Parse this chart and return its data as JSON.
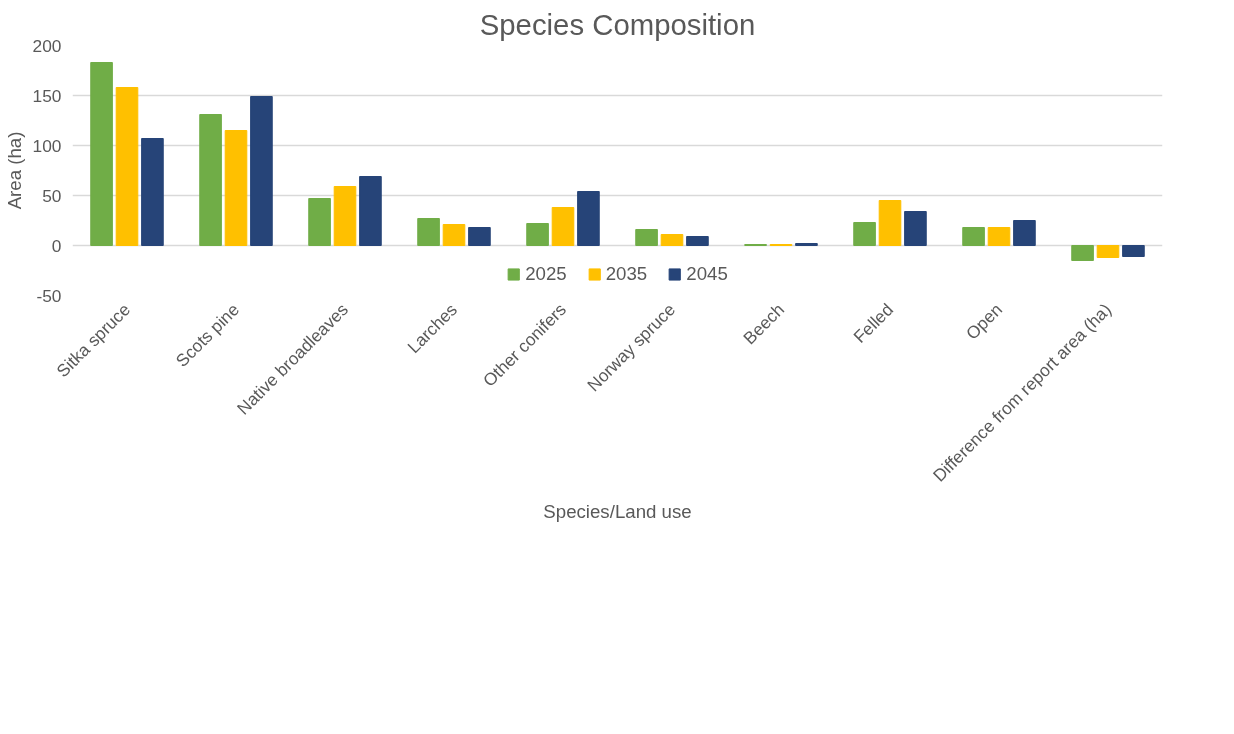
{
  "chart_data": {
    "type": "bar",
    "title": "Species Composition",
    "xlabel": "Species/Land use",
    "ylabel": "Area (ha)",
    "categories": [
      "Sitka spruce",
      "Scots pine",
      "Native broadleaves",
      "Larches",
      "Other conifers",
      "Norway spruce",
      "Beech",
      "Felled",
      "Open",
      "Difference from report area (ha)"
    ],
    "series": [
      {
        "name": "2025",
        "color": "#70ad47",
        "values": [
          183,
          131,
          47,
          27,
          22,
          16,
          1,
          23,
          18,
          -15
        ]
      },
      {
        "name": "2035",
        "color": "#ffc000",
        "values": [
          158,
          115,
          59,
          21,
          38,
          11,
          1,
          45,
          18,
          -12
        ]
      },
      {
        "name": "2045",
        "color": "#264478",
        "values": [
          107,
          149,
          69,
          18,
          54,
          9,
          2,
          34,
          25,
          -11
        ]
      }
    ],
    "ylim": [
      -50,
      200
    ],
    "yticks": [
      -50,
      0,
      50,
      100,
      150,
      200
    ],
    "grid": "y",
    "legend": "bottom"
  }
}
